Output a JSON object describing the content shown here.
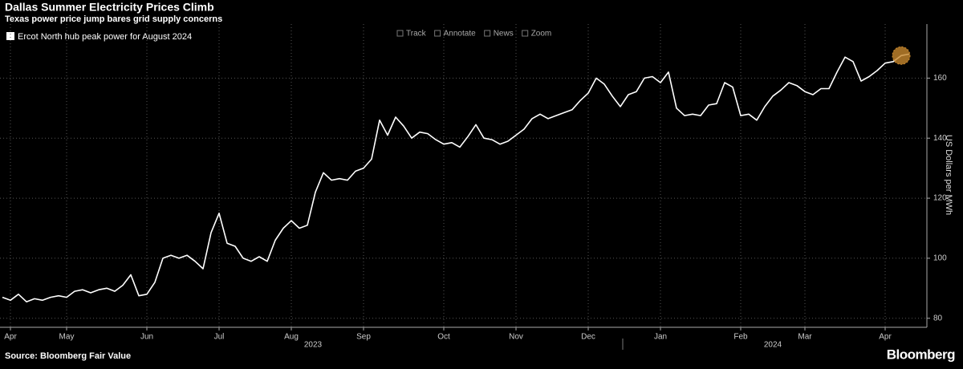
{
  "chart_data": {
    "type": "line",
    "title": "Dallas Summer Electricity Prices Climb",
    "subtitle": "Texas power price jump bares grid supply concerns",
    "toolbar": [
      "Track",
      "Annotate",
      "News",
      "Zoom"
    ],
    "y_axis_label": "US Dollars per MWh",
    "source": "Source: Bloomberg Fair Value",
    "brand": "Bloomberg",
    "x_group_labels": [
      "2023",
      "2024"
    ],
    "categories": [
      null,
      "Apr",
      null,
      null,
      null,
      null,
      null,
      null,
      "May",
      null,
      null,
      null,
      null,
      null,
      null,
      null,
      null,
      null,
      "Jun",
      null,
      null,
      null,
      null,
      null,
      null,
      null,
      null,
      "Jul",
      null,
      null,
      null,
      null,
      null,
      null,
      null,
      null,
      "Aug",
      null,
      null,
      null,
      null,
      null,
      null,
      null,
      null,
      "Sep",
      null,
      null,
      null,
      null,
      null,
      null,
      null,
      null,
      null,
      "Oct",
      null,
      null,
      null,
      null,
      null,
      null,
      null,
      null,
      "Nov",
      null,
      null,
      null,
      null,
      null,
      null,
      null,
      null,
      "Dec",
      null,
      null,
      null,
      null,
      null,
      null,
      null,
      null,
      "Jan",
      null,
      null,
      null,
      null,
      null,
      null,
      null,
      null,
      null,
      "Feb",
      null,
      null,
      null,
      null,
      null,
      null,
      null,
      "Mar",
      null,
      null,
      null,
      null,
      null,
      null,
      null,
      null,
      null,
      "Apr",
      null,
      null,
      null
    ],
    "series": [
      {
        "name": "Ercot North hub peak power for August 2024",
        "color": "#ffffff",
        "values": [
          87,
          86,
          88,
          85.5,
          86.5,
          86,
          87,
          87.5,
          87,
          89,
          89.5,
          88.5,
          89.5,
          90,
          89,
          91,
          94.5,
          87.5,
          88,
          92,
          100,
          101,
          100,
          101,
          99,
          96.5,
          108.5,
          115,
          105,
          104,
          100,
          99,
          100.5,
          99,
          106,
          110,
          112.5,
          110,
          111,
          122,
          128.5,
          126,
          126.5,
          126,
          129,
          130,
          133,
          146,
          141,
          147,
          144,
          140,
          142,
          141.5,
          139.5,
          138,
          138.5,
          137,
          140.5,
          144.5,
          140,
          139.5,
          138,
          139,
          141,
          143,
          146.5,
          148,
          146.5,
          147.5,
          148.5,
          149.5,
          152.5,
          155,
          160,
          158,
          154,
          150.5,
          154.5,
          155.5,
          160,
          160.5,
          158.5,
          162,
          150,
          147.5,
          148,
          147.5,
          151,
          151.5,
          158.5,
          157,
          147.5,
          148,
          146,
          150.5,
          154,
          156,
          158.5,
          157.5,
          155.5,
          154.5,
          156.5,
          156.5,
          162,
          167,
          165.5,
          159,
          160.5,
          162.5,
          165,
          165.5,
          167.5,
          168
        ]
      }
    ],
    "ylim": [
      77,
      178
    ],
    "yticks": [
      80,
      100,
      120,
      140,
      160
    ],
    "grid": true,
    "highlight_color": "#c8882e"
  }
}
